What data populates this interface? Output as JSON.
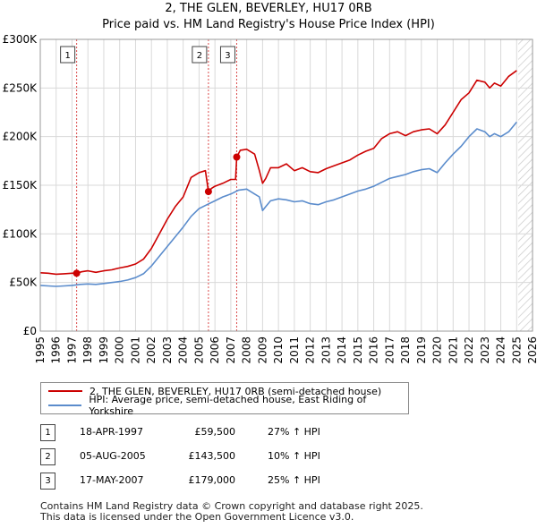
{
  "title_line1": "2, THE GLEN, BEVERLEY, HU17 0RB",
  "title_line2": "Price paid vs. HM Land Registry's House Price Index (HPI)",
  "colors": {
    "property": "#cc0000",
    "hpi": "#5b8ccc",
    "grid": "#d9d9d9",
    "plot_bg": "#ffffff"
  },
  "chart_data": {
    "type": "line",
    "xlim": [
      1995,
      2026
    ],
    "ylim": [
      0,
      300000
    ],
    "x_ticks": [
      "1995",
      "1996",
      "1997",
      "1998",
      "1999",
      "2000",
      "2001",
      "2002",
      "2003",
      "2004",
      "2005",
      "2006",
      "2007",
      "2008",
      "2009",
      "2010",
      "2011",
      "2012",
      "2013",
      "2014",
      "2015",
      "2016",
      "2017",
      "2018",
      "2019",
      "2020",
      "2021",
      "2022",
      "2023",
      "2024",
      "2025",
      "2026"
    ],
    "y_ticks": [
      {
        "value": 0,
        "label": "£0"
      },
      {
        "value": 50000,
        "label": "£50K"
      },
      {
        "value": 100000,
        "label": "£100K"
      },
      {
        "value": 150000,
        "label": "£150K"
      },
      {
        "value": 200000,
        "label": "£200K"
      },
      {
        "value": 250000,
        "label": "£250K"
      },
      {
        "value": 300000,
        "label": "£300K"
      }
    ],
    "series": [
      {
        "name": "2, THE GLEN, BEVERLEY, HU17 0RB (semi-detached house)",
        "color": "#cc0000",
        "x": [
          1995.0,
          1995.5,
          1996.0,
          1996.5,
          1997.0,
          1997.29,
          1997.6,
          1998.0,
          1998.5,
          1999.0,
          1999.5,
          2000.0,
          2000.5,
          2001.0,
          2001.5,
          2002.0,
          2002.5,
          2003.0,
          2003.5,
          2004.0,
          2004.5,
          2005.0,
          2005.4,
          2005.59,
          2005.8,
          2006.0,
          2006.5,
          2007.0,
          2007.3,
          2007.37,
          2007.6,
          2008.0,
          2008.5,
          2008.8,
          2009.0,
          2009.2,
          2009.5,
          2010.0,
          2010.5,
          2011.0,
          2011.5,
          2012.0,
          2012.5,
          2013.0,
          2013.5,
          2014.0,
          2014.5,
          2015.0,
          2015.5,
          2016.0,
          2016.5,
          2017.0,
          2017.5,
          2018.0,
          2018.5,
          2019.0,
          2019.5,
          2020.0,
          2020.5,
          2021.0,
          2021.5,
          2022.0,
          2022.5,
          2023.0,
          2023.3,
          2023.6,
          2024.0,
          2024.5,
          2025.0
        ],
        "y": [
          60000,
          59500,
          58500,
          59000,
          59500,
          59500,
          61000,
          62000,
          60500,
          62000,
          63000,
          65000,
          66500,
          69000,
          74000,
          85000,
          100000,
          115000,
          128000,
          138000,
          158000,
          163000,
          165000,
          143500,
          147000,
          149000,
          152000,
          156000,
          156000,
          179000,
          186000,
          187000,
          182000,
          165000,
          152000,
          157000,
          168000,
          168000,
          172000,
          165000,
          168000,
          164000,
          163000,
          167000,
          170000,
          173000,
          176000,
          181000,
          185000,
          188000,
          198000,
          203000,
          205000,
          201000,
          205000,
          207000,
          208000,
          203000,
          212000,
          225000,
          238000,
          245000,
          258000,
          256000,
          250000,
          255000,
          252000,
          262000,
          268000
        ]
      },
      {
        "name": "HPI: Average price, semi-detached house, East Riding of Yorkshire",
        "color": "#5b8ccc",
        "x": [
          1995.0,
          1995.5,
          1996.0,
          1996.5,
          1997.0,
          1997.5,
          1998.0,
          1998.5,
          1999.0,
          1999.5,
          2000.0,
          2000.5,
          2001.0,
          2001.5,
          2002.0,
          2002.5,
          2003.0,
          2003.5,
          2004.0,
          2004.5,
          2005.0,
          2005.5,
          2006.0,
          2006.5,
          2007.0,
          2007.5,
          2008.0,
          2008.5,
          2008.8,
          2009.0,
          2009.2,
          2009.5,
          2010.0,
          2010.5,
          2011.0,
          2011.5,
          2012.0,
          2012.5,
          2013.0,
          2013.5,
          2014.0,
          2014.5,
          2015.0,
          2015.5,
          2016.0,
          2016.5,
          2017.0,
          2017.5,
          2018.0,
          2018.5,
          2019.0,
          2019.5,
          2020.0,
          2020.5,
          2021.0,
          2021.5,
          2022.0,
          2022.5,
          2023.0,
          2023.3,
          2023.6,
          2024.0,
          2024.5,
          2025.0
        ],
        "y": [
          47000,
          46500,
          46000,
          46500,
          47000,
          48000,
          48500,
          48000,
          49000,
          50000,
          51000,
          52500,
          55000,
          59000,
          67000,
          77000,
          87000,
          97000,
          107000,
          118000,
          126000,
          130000,
          134000,
          138000,
          141000,
          145000,
          146000,
          141000,
          138000,
          124000,
          128000,
          134000,
          136000,
          135000,
          133000,
          134000,
          131000,
          130000,
          133000,
          135000,
          138000,
          141000,
          144000,
          146000,
          149000,
          153000,
          157000,
          159000,
          161000,
          164000,
          166000,
          167000,
          163000,
          173000,
          182000,
          190000,
          200000,
          208000,
          205000,
          200000,
          203000,
          200000,
          205000,
          215000
        ]
      }
    ],
    "markers": [
      {
        "label": "1",
        "x": 1997.29,
        "y": 59500
      },
      {
        "label": "2",
        "x": 2005.59,
        "y": 143500
      },
      {
        "label": "3",
        "x": 2007.37,
        "y": 179000
      }
    ]
  },
  "legend": {
    "property": "2, THE GLEN, BEVERLEY, HU17 0RB (semi-detached house)",
    "hpi": "HPI: Average price, semi-detached house, East Riding of Yorkshire"
  },
  "sales": [
    {
      "num": "1",
      "date": "18-APR-1997",
      "price": "£59,500",
      "hpi": "27% ↑ HPI"
    },
    {
      "num": "2",
      "date": "05-AUG-2005",
      "price": "£143,500",
      "hpi": "10% ↑ HPI"
    },
    {
      "num": "3",
      "date": "17-MAY-2007",
      "price": "£179,000",
      "hpi": "25% ↑ HPI"
    }
  ],
  "footer_line1": "Contains HM Land Registry data © Crown copyright and database right 2025.",
  "footer_line2": "This data is licensed under the Open Government Licence v3.0."
}
